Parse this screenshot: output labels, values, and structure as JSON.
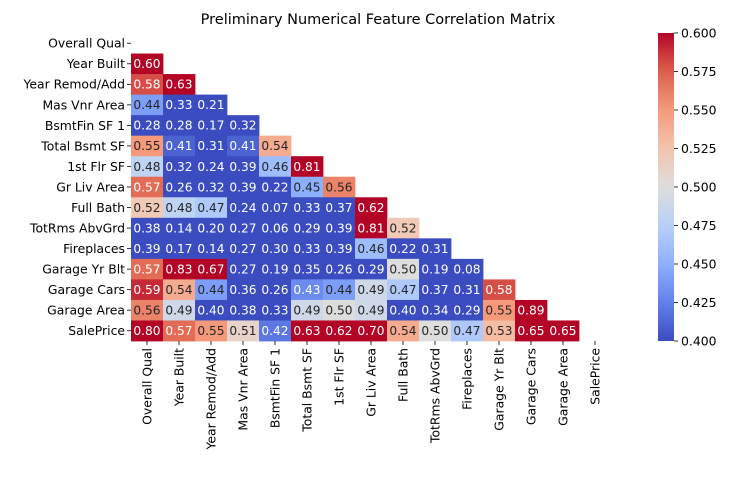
{
  "chart_data": {
    "type": "heatmap",
    "title": "Preliminary Numerical Feature Correlation Matrix",
    "labels": [
      "Overall Qual",
      "Year Built",
      "Year Remod/Add",
      "Mas Vnr Area",
      "BsmtFin SF 1",
      "Total Bsmt SF",
      "1st Flr SF",
      "Gr Liv Area",
      "Full Bath",
      "TotRms AbvGrd",
      "Fireplaces",
      "Garage Yr Blt",
      "Garage Cars",
      "Garage Area",
      "SalePrice"
    ],
    "mask": "upper-triangle-and-diagonal",
    "matrix": [
      [],
      [
        0.6
      ],
      [
        0.58,
        0.63
      ],
      [
        0.44,
        0.33,
        0.21
      ],
      [
        0.28,
        0.28,
        0.17,
        0.32
      ],
      [
        0.55,
        0.41,
        0.31,
        0.41,
        0.54
      ],
      [
        0.48,
        0.32,
        0.24,
        0.39,
        0.46,
        0.81
      ],
      [
        0.57,
        0.26,
        0.32,
        0.39,
        0.22,
        0.45,
        0.56
      ],
      [
        0.52,
        0.48,
        0.47,
        0.24,
        0.07,
        0.33,
        0.37,
        0.62
      ],
      [
        0.38,
        0.14,
        0.2,
        0.27,
        0.06,
        0.29,
        0.39,
        0.81,
        0.52
      ],
      [
        0.39,
        0.17,
        0.14,
        0.27,
        0.3,
        0.33,
        0.39,
        0.46,
        0.22,
        0.31
      ],
      [
        0.57,
        0.83,
        0.67,
        0.27,
        0.19,
        0.35,
        0.26,
        0.29,
        0.5,
        0.19,
        0.08
      ],
      [
        0.59,
        0.54,
        0.44,
        0.36,
        0.26,
        0.43,
        0.44,
        0.49,
        0.47,
        0.37,
        0.31,
        0.58
      ],
      [
        0.56,
        0.49,
        0.4,
        0.38,
        0.33,
        0.49,
        0.5,
        0.49,
        0.4,
        0.34,
        0.29,
        0.55,
        0.89
      ],
      [
        0.8,
        0.57,
        0.55,
        0.51,
        0.42,
        0.63,
        0.62,
        0.7,
        0.54,
        0.5,
        0.47,
        0.53,
        0.65,
        0.65
      ]
    ],
    "colormap": "coolwarm",
    "vmin": 0.4,
    "vmax": 0.6,
    "colorbar_ticks": [
      "0.400",
      "0.425",
      "0.450",
      "0.475",
      "0.500",
      "0.525",
      "0.550",
      "0.575",
      "0.600"
    ]
  }
}
